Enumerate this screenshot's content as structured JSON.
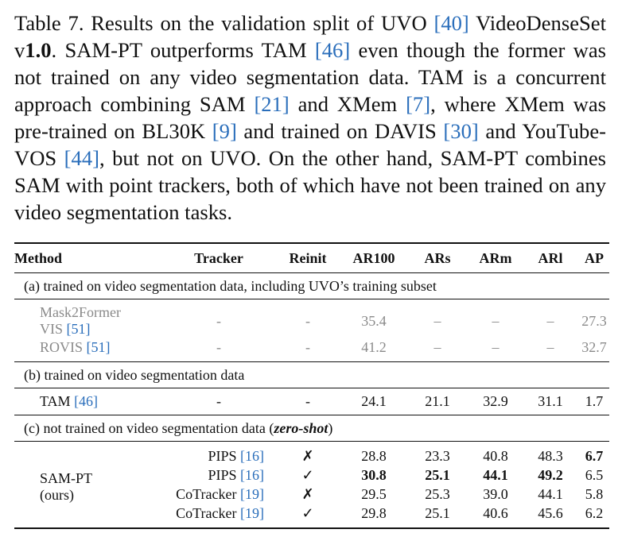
{
  "caption": {
    "label": "Table 7.",
    "seg1": " Results on the validation split of UVO ",
    "ref40": "[40]",
    "seg2": " VideoDenseSet v",
    "version": "1.0",
    "seg3": ". SAM-PT outperforms TAM ",
    "ref46": "[46]",
    "seg4": " even though the former was not trained on any video segmentation data. TAM is a concurrent approach combining SAM ",
    "ref21": "[21]",
    "seg5": " and XMem ",
    "ref7": "[7]",
    "seg6": ", where XMem was pre-trained on BL30K ",
    "ref9": "[9]",
    "seg7": " and trained on DAVIS ",
    "ref30": "[30]",
    "seg8": " and YouTube-VOS ",
    "ref44": "[44]",
    "seg9": ", but not on UVO. On the other hand, SAM-PT combines SAM with point trackers, both of which have not been trained on any video segmentation tasks."
  },
  "table": {
    "headers": [
      "Method",
      "Tracker",
      "Reinit",
      "AR100",
      "ARs",
      "ARm",
      "ARl",
      "AP"
    ],
    "section_a": "(a) trained on video segmentation data, including UVO’s training subset",
    "section_b": "(b) trained on video segmentation data",
    "section_c_prefix": "(c) not trained on video segmentation data (",
    "section_c_em": "zero-shot",
    "section_c_suffix": ")",
    "rows_a": [
      {
        "method_line1": "Mask2Former",
        "method_line2": "VIS ",
        "ref": "[51]",
        "tracker": "-",
        "reinit": "-",
        "ar100": "35.4",
        "ars": "–",
        "arm": "–",
        "arl": "–",
        "ap": "27.3"
      },
      {
        "method_line1": "ROVIS ",
        "ref": "[51]",
        "tracker": "-",
        "reinit": "-",
        "ar100": "41.2",
        "ars": "–",
        "arm": "–",
        "arl": "–",
        "ap": "32.7"
      }
    ],
    "rows_b": [
      {
        "method": "TAM ",
        "ref": "[46]",
        "tracker": "-",
        "reinit": "-",
        "ar100": "24.1",
        "ars": "21.1",
        "arm": "32.9",
        "arl": "31.1",
        "ap": "1.7"
      }
    ],
    "samp_method": "SAM-PT",
    "samp_sub": "(ours)",
    "rows_c": [
      {
        "tracker": "PIPS ",
        "ref": "[16]",
        "reinit": "✗",
        "ar100": "28.8",
        "ars": "23.3",
        "arm": "40.8",
        "arl": "48.3",
        "ap": "6.7"
      },
      {
        "tracker": "PIPS ",
        "ref": "[16]",
        "reinit": "✓",
        "ar100": "30.8",
        "ars": "25.1",
        "arm": "44.1",
        "arl": "49.2",
        "ap": "6.5"
      },
      {
        "tracker": "CoTracker ",
        "ref": "[19]",
        "reinit": "✗",
        "ar100": "29.5",
        "ars": "25.3",
        "arm": "39.0",
        "arl": "44.1",
        "ap": "5.8"
      },
      {
        "tracker": "CoTracker ",
        "ref": "[19]",
        "reinit": "✓",
        "ar100": "29.8",
        "ars": "25.1",
        "arm": "40.6",
        "arl": "45.6",
        "ap": "6.2"
      }
    ]
  }
}
